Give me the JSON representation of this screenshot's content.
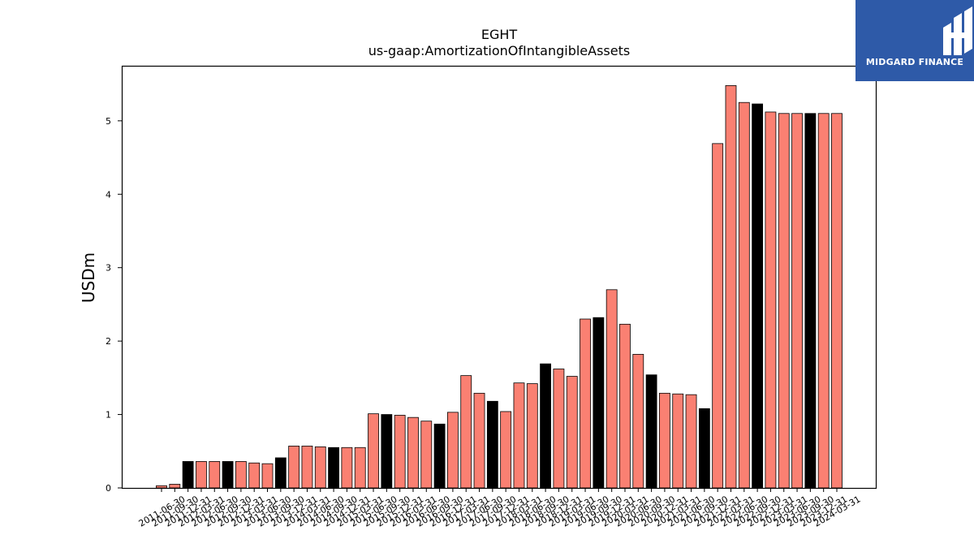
{
  "brand": {
    "name": "MIDGARD FINANCE",
    "background_color": "#2e5aa8"
  },
  "chart_data": {
    "type": "bar",
    "title": "EGHT",
    "subtitle": "us-gaap:AmortizationOfIntangibleAssets",
    "xlabel": "",
    "ylabel": "USDm",
    "ylim": [
      0,
      5.75
    ],
    "yticks": [
      0,
      1,
      2,
      3,
      4,
      5
    ],
    "grid": false,
    "colors": {
      "quarterly": "#fa8072",
      "annual": "#000000",
      "edge": "#000000"
    },
    "categories": [
      "2011-06-30",
      "2011-09-30",
      "2011-12-31",
      "2012-03-31",
      "2012-06-30",
      "2012-09-30",
      "2012-12-31",
      "2013-03-31",
      "2013-06-30",
      "2013-09-30",
      "2013-12-31",
      "2014-03-31",
      "2014-06-30",
      "2014-09-30",
      "2014-12-31",
      "2015-03-31",
      "2015-06-30",
      "2015-09-30",
      "2015-12-31",
      "2016-03-31",
      "2016-06-30",
      "2016-09-30",
      "2016-12-31",
      "2017-03-31",
      "2017-06-30",
      "2017-09-30",
      "2017-12-31",
      "2018-03-31",
      "2018-06-30",
      "2018-09-30",
      "2018-12-31",
      "2019-03-31",
      "2019-06-30",
      "2019-09-30",
      "2019-12-31",
      "2020-03-31",
      "2020-06-30",
      "2020-09-30",
      "2020-12-31",
      "2021-03-31",
      "2021-06-30",
      "2021-09-30",
      "2021-12-31",
      "2022-03-31",
      "2022-06-30",
      "2022-09-30",
      "2022-12-31",
      "2023-03-31",
      "2023-06-30",
      "2023-09-30",
      "2023-12-31",
      "2024-03-31"
    ],
    "values": [
      0.03,
      0.05,
      0.36,
      0.36,
      0.36,
      0.36,
      0.36,
      0.34,
      0.33,
      0.41,
      0.57,
      0.57,
      0.56,
      0.55,
      0.55,
      0.55,
      1.01,
      1.0,
      0.99,
      0.96,
      0.91,
      0.87,
      1.03,
      1.53,
      1.29,
      1.18,
      1.04,
      1.43,
      1.42,
      1.69,
      1.62,
      1.52,
      2.3,
      2.32,
      2.7,
      2.23,
      1.82,
      1.54,
      1.29,
      1.28,
      1.27,
      1.08,
      4.69,
      5.48,
      5.25,
      5.23,
      5.12,
      5.1,
      5.1,
      5.1,
      5.1,
      5.1
    ],
    "annual_flags": [
      false,
      false,
      true,
      false,
      false,
      true,
      false,
      false,
      false,
      true,
      false,
      false,
      false,
      true,
      false,
      false,
      false,
      true,
      false,
      false,
      false,
      true,
      false,
      false,
      false,
      true,
      false,
      false,
      false,
      true,
      false,
      false,
      false,
      true,
      false,
      false,
      false,
      true,
      false,
      false,
      false,
      true,
      false,
      false,
      false,
      true,
      false,
      false,
      false,
      true,
      false,
      false
    ],
    "x_tick_labels": [
      "2011-06-30",
      "2011-09-30",
      "2011-12-31",
      "2012-03-31",
      "2012-06-30",
      "2012-09-30",
      "2012-12-31",
      "2013-03-31",
      "2013-06-30",
      "2013-09-30",
      "2013-12-31",
      "2014-03-31",
      "2014-06-30",
      "2014-09-30",
      "2014-12-31",
      "2015-03-31",
      "2015-06-30",
      "2015-09-30",
      "2015-12-31",
      "2016-03-31",
      "2016-06-30",
      "2016-09-30",
      "2016-12-31",
      "2017-03-31",
      "2017-06-30",
      "2017-09-30",
      "2017-12-31",
      "2018-03-31",
      "2018-06-30",
      "2018-09-30",
      "2018-12-31",
      "2019-03-31",
      "2019-06-30",
      "2019-09-30",
      "2019-12-31",
      "2020-03-31",
      "2020-06-30",
      "2020-09-30",
      "2020-12-31",
      "2021-03-31",
      "2021-06-30",
      "2021-09-30",
      "2021-12-31",
      "2022-03-31",
      "2022-06-30",
      "2022-09-30",
      "2022-12-31",
      "2023-03-31",
      "2023-06-30",
      "2023-09-30",
      "2023-12-31",
      "2024-03-31"
    ]
  }
}
